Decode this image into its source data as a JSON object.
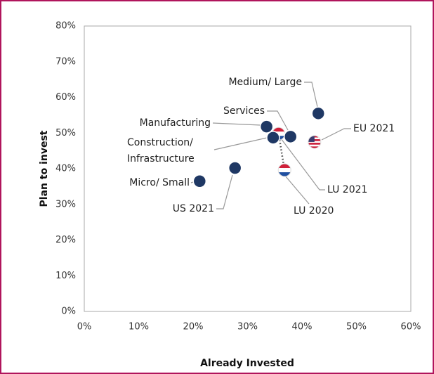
{
  "chart_data": {
    "type": "scatter",
    "x_label": "Already Invested",
    "y_label": "Plan to invest",
    "xlim": [
      0,
      60
    ],
    "ylim": [
      0,
      80
    ],
    "xticks": [
      {
        "value": 0,
        "label": "0%"
      },
      {
        "value": 10,
        "label": "10%"
      },
      {
        "value": 20,
        "label": "20%"
      },
      {
        "value": 30,
        "label": "30%"
      },
      {
        "value": 40,
        "label": "40%"
      },
      {
        "value": 50,
        "label": "50%"
      },
      {
        "value": 60,
        "label": "60%"
      }
    ],
    "yticks": [
      {
        "value": 0,
        "label": "0%"
      },
      {
        "value": 10,
        "label": "10%"
      },
      {
        "value": 20,
        "label": "20%"
      },
      {
        "value": 30,
        "label": "30%"
      },
      {
        "value": 40,
        "label": "40%"
      },
      {
        "value": 50,
        "label": "50%"
      },
      {
        "value": 60,
        "label": "60%"
      },
      {
        "value": 70,
        "label": "70%"
      },
      {
        "value": 80,
        "label": "80%"
      }
    ],
    "grid": false,
    "color": "#1f3864",
    "series": [
      {
        "name": "Medium/ Large",
        "x": 43,
        "y": 55.5,
        "marker": "circle"
      },
      {
        "name": "EU 2021",
        "x": 42.3,
        "y": 47.5,
        "marker": "flag-us"
      },
      {
        "name": "Services",
        "x": 37.9,
        "y": 49,
        "marker": "circle"
      },
      {
        "name": "LU 2021",
        "x": 35.7,
        "y": 49.8,
        "marker": "flag-lu"
      },
      {
        "name": "Manufacturing",
        "x": 33.5,
        "y": 51.8,
        "marker": "circle"
      },
      {
        "name": "Construction/ Infrastructure",
        "x": 34.7,
        "y": 48.7,
        "marker": "circle"
      },
      {
        "name": "LU 2020",
        "x": 36.8,
        "y": 39.6,
        "marker": "flag-lu"
      },
      {
        "name": "US 2021",
        "x": 27.7,
        "y": 40.2,
        "marker": "circle"
      },
      {
        "name": "Micro/ Small",
        "x": 21.2,
        "y": 36.5,
        "marker": "circle"
      }
    ]
  }
}
